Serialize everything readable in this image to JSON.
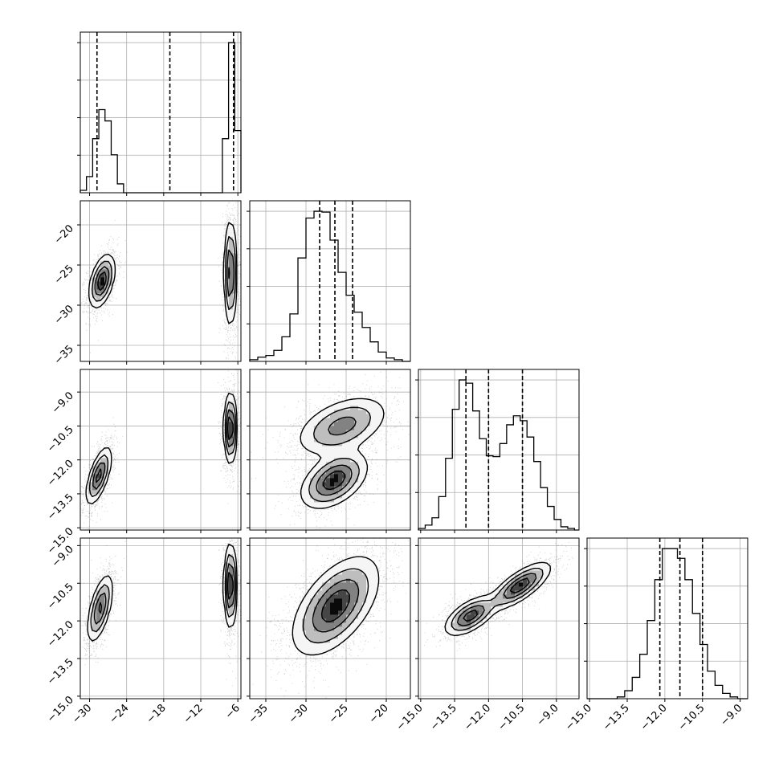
{
  "chart_data": {
    "type": "corner",
    "title": "",
    "parameters": [
      {
        "label": "",
        "range": [
          -31.5,
          -5.5
        ],
        "ticks": [
          -30,
          -24,
          -18,
          -12,
          -6
        ],
        "tick_labels": [
          "−30",
          "−24",
          "−18",
          "−12",
          "−6"
        ],
        "quantiles": [
          -28.8,
          -17.0,
          -6.7
        ]
      },
      {
        "label": "",
        "range": [
          -37,
          -17
        ],
        "ticks": [
          -35,
          -30,
          -25,
          -20
        ],
        "tick_labels": [
          "−35",
          "−30",
          "−25",
          "−20"
        ],
        "quantiles": [
          -28.3,
          -26.4,
          -24.2
        ]
      },
      {
        "label": "",
        "range": [
          -15.1,
          -8.0
        ],
        "ticks": [
          -15.0,
          -13.5,
          -12.0,
          -10.5,
          -9.0
        ],
        "tick_labels": [
          "−15.0",
          "−13.5",
          "−12.0",
          "−10.5",
          "−9.0"
        ],
        "quantiles": [
          -13.0,
          -12.0,
          -10.5
        ]
      },
      {
        "label": "",
        "range": [
          -15.1,
          -8.7
        ],
        "ticks": [
          -15.0,
          -13.5,
          -12.0,
          -10.5,
          -9.0
        ],
        "tick_labels": [
          "−15.0",
          "−13.5",
          "−12.0",
          "−10.5",
          "−9.0"
        ],
        "quantiles": [
          -12.2,
          -11.4,
          -10.5
        ]
      }
    ],
    "histograms": [
      {
        "bin_edges": [
          -31.5,
          -30.5,
          -29.5,
          -28.5,
          -27.5,
          -26.5,
          -25.5,
          -24.5,
          -23.5,
          -22.5,
          -21.5,
          -20.5,
          -19.5,
          -18.5,
          -17.5,
          -16.5,
          -15.5,
          -14.5,
          -13.5,
          -12.5,
          -11.5,
          -10.5,
          -9.5,
          -8.5,
          -7.5,
          -6.5,
          -5.5
        ],
        "counts": [
          30,
          200,
          670,
          1030,
          890,
          470,
          110,
          0,
          0,
          0,
          0,
          0,
          0,
          0,
          0,
          0,
          0,
          0,
          0,
          0,
          0,
          0,
          0,
          670,
          1860,
          770
        ]
      },
      {
        "bin_edges": [
          -37,
          -36,
          -35,
          -34,
          -33,
          -32,
          -31,
          -30,
          -29,
          -28,
          -27,
          -26,
          -25,
          -24,
          -23,
          -22,
          -21,
          -20,
          -19,
          -18,
          -17
        ],
        "counts": [
          20,
          50,
          70,
          130,
          290,
          560,
          1220,
          1690,
          1770,
          1760,
          1430,
          1050,
          780,
          580,
          400,
          230,
          110,
          40,
          20,
          0
        ]
      },
      {
        "bin_edges": [
          -15.1,
          -14.8,
          -14.5,
          -14.2,
          -13.9,
          -13.6,
          -13.3,
          -13.0,
          -12.7,
          -12.4,
          -12.1,
          -11.8,
          -11.5,
          -11.2,
          -10.9,
          -10.6,
          -10.3,
          -10.0,
          -9.7,
          -9.4,
          -9.1,
          -8.8,
          -8.5,
          -8.2,
          -8.0
        ],
        "counts": [
          20,
          60,
          150,
          410,
          880,
          1480,
          1840,
          1800,
          1460,
          1120,
          910,
          900,
          1060,
          1290,
          1400,
          1340,
          1140,
          840,
          520,
          290,
          130,
          40,
          20,
          0
        ]
      },
      {
        "bin_edges": [
          -15.1,
          -14.8,
          -14.5,
          -14.2,
          -13.9,
          -13.6,
          -13.3,
          -13.0,
          -12.7,
          -12.4,
          -12.1,
          -11.8,
          -11.5,
          -11.2,
          -10.9,
          -10.6,
          -10.3,
          -10.0,
          -9.7,
          -9.4,
          -9.1,
          -8.8,
          -8.7
        ],
        "counts": [
          0,
          0,
          0,
          0,
          20,
          90,
          240,
          500,
          880,
          1340,
          1690,
          1690,
          1580,
          1340,
          960,
          610,
          310,
          150,
          60,
          20,
          0,
          0
        ]
      }
    ],
    "pair_components": {
      "1-0": [
        {
          "mx": -28.0,
          "my": -27.0,
          "sx": 1.0,
          "sy": 1.6,
          "rho": 0.45,
          "w": 0.5
        },
        {
          "mx": -7.2,
          "my": -26.0,
          "sx": 0.5,
          "sy": 3.2,
          "rho": 0.0,
          "w": 0.5
        }
      ],
      "2-0": [
        {
          "mx": -28.5,
          "my": -12.7,
          "sx": 1.0,
          "sy": 0.62,
          "rho": 0.65,
          "w": 0.5
        },
        {
          "mx": -7.2,
          "my": -10.6,
          "sx": 0.5,
          "sy": 0.75,
          "rho": 0.0,
          "w": 0.5
        }
      ],
      "3-0": [
        {
          "mx": -28.3,
          "my": -11.5,
          "sx": 1.0,
          "sy": 0.65,
          "rho": 0.6,
          "w": 0.5
        },
        {
          "mx": -7.2,
          "my": -10.6,
          "sx": 0.5,
          "sy": 0.8,
          "rho": 0.0,
          "w": 0.5
        }
      ],
      "2-1": [
        {
          "mx": -26.5,
          "my": -12.9,
          "sx": 2.0,
          "sy": 0.6,
          "rho": 0.45,
          "w": 0.5
        },
        {
          "mx": -25.5,
          "my": -10.5,
          "sx": 2.8,
          "sy": 0.65,
          "rho": 0.45,
          "w": 0.5
        }
      ],
      "3-1": [
        {
          "mx": -26.3,
          "my": -11.4,
          "sx": 2.6,
          "sy": 0.95,
          "rho": 0.55,
          "w": 1.0
        }
      ],
      "3-2": [
        {
          "mx": -12.8,
          "my": -11.8,
          "sx": 0.55,
          "sy": 0.38,
          "rho": 0.6,
          "w": 0.45
        },
        {
          "mx": -10.6,
          "my": -10.6,
          "sx": 0.65,
          "sy": 0.45,
          "rho": 0.75,
          "w": 0.55
        }
      ]
    },
    "grid": true,
    "legend": "none"
  }
}
